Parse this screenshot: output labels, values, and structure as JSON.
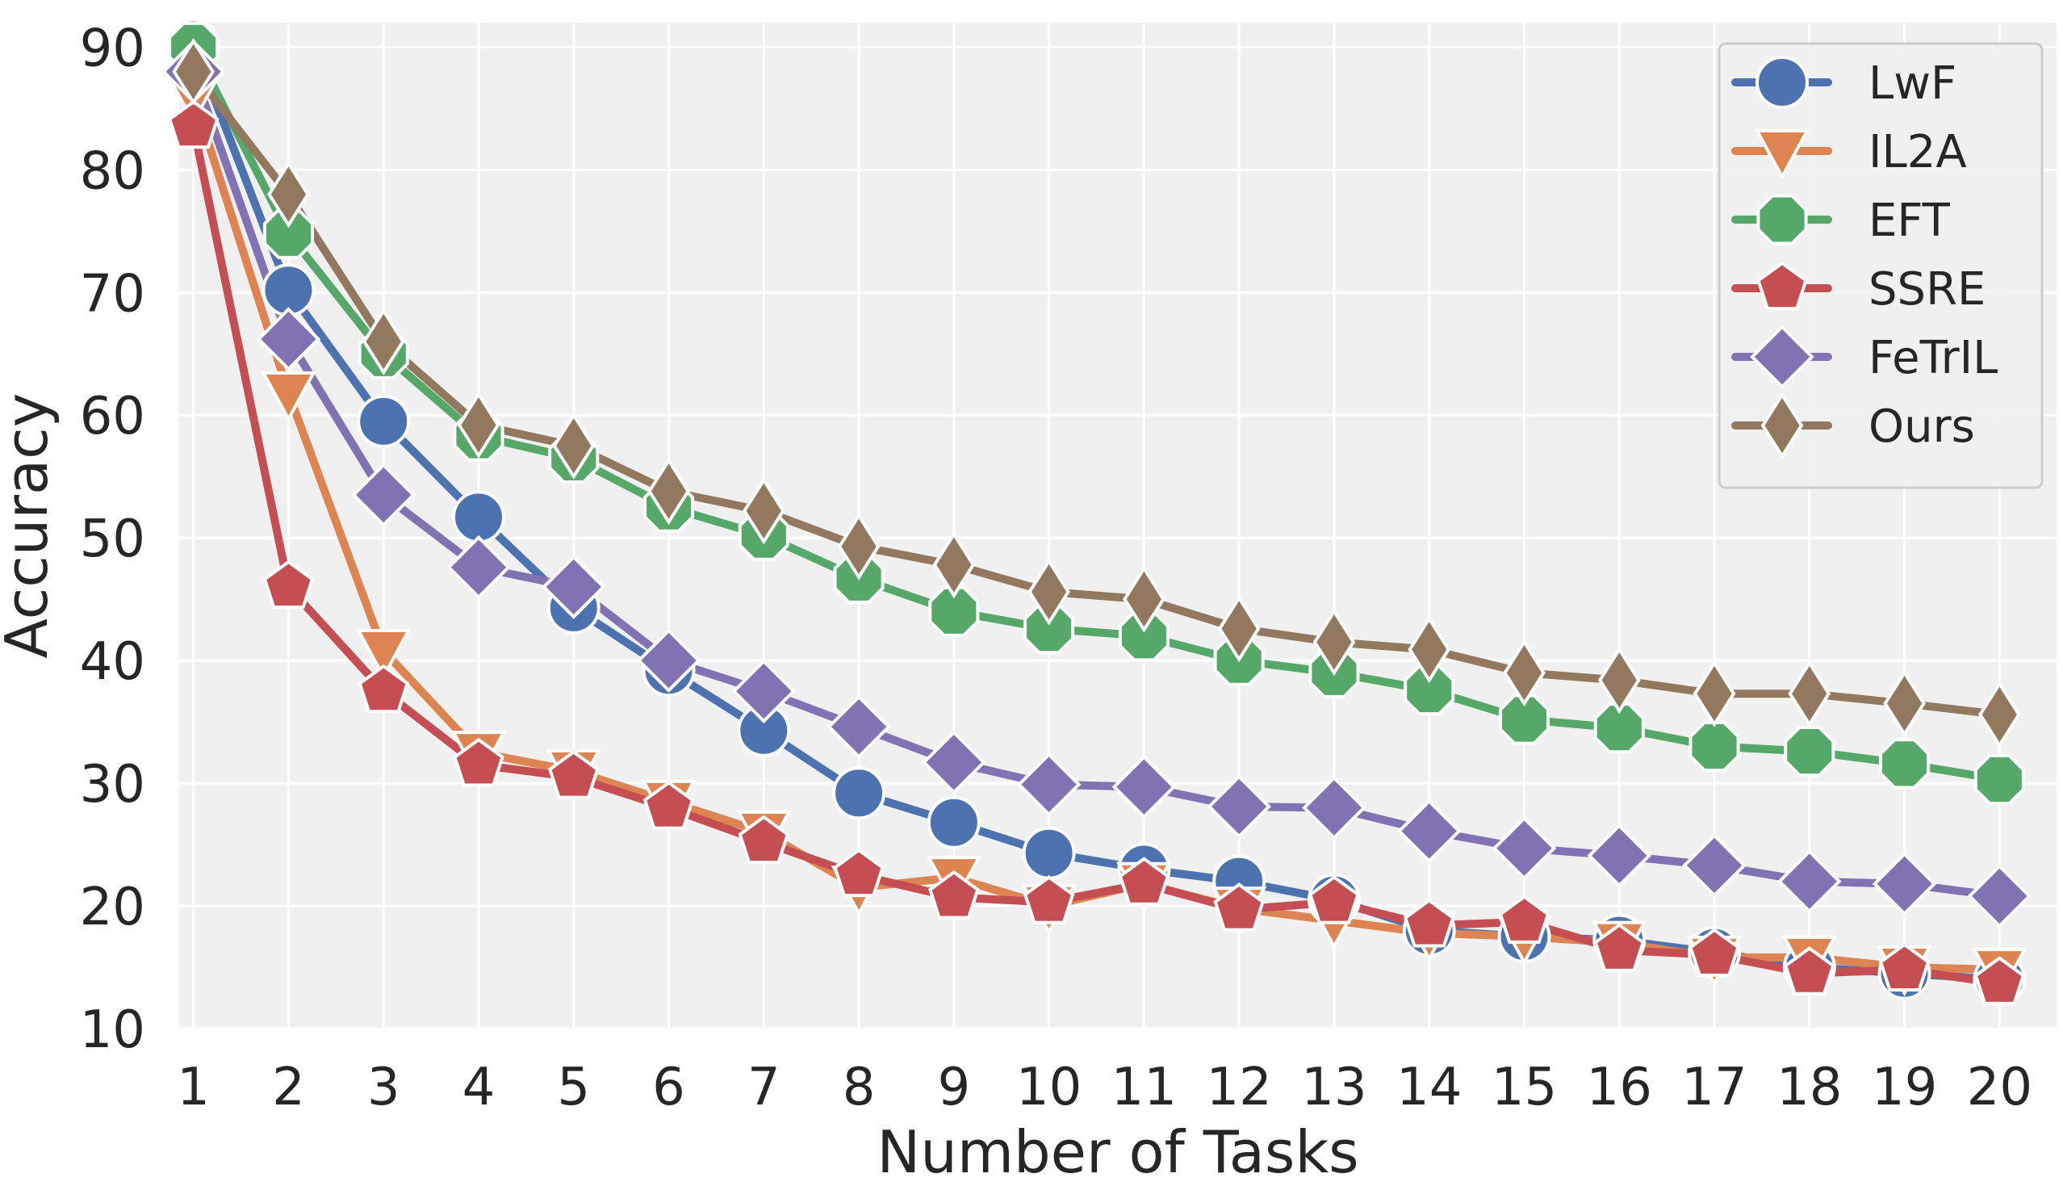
{
  "chart_data": {
    "type": "line",
    "title": "",
    "xlabel": "Number of Tasks",
    "ylabel": "Accuracy",
    "x": [
      1,
      2,
      3,
      4,
      5,
      6,
      7,
      8,
      9,
      10,
      11,
      12,
      13,
      14,
      15,
      16,
      17,
      18,
      19,
      20
    ],
    "xlim": [
      0.85,
      20.6
    ],
    "ylim": [
      10,
      92
    ],
    "yticks": [
      10,
      20,
      30,
      40,
      50,
      60,
      70,
      80,
      90
    ],
    "grid": true,
    "legend_position": "top-right",
    "series": [
      {
        "name": "LwF",
        "color": "#4C72B0",
        "marker": "circle",
        "values": [
          90.2,
          70.2,
          59.5,
          51.7,
          44.3,
          39.2,
          34.3,
          29.2,
          26.8,
          24.3,
          23.0,
          22.0,
          20.5,
          18.0,
          17.5,
          17.2,
          16.2,
          15.0,
          14.5,
          14.0
        ]
      },
      {
        "name": "IL2A",
        "color": "#DD8452",
        "marker": "triangle-down",
        "values": [
          86.0,
          61.8,
          40.8,
          32.5,
          31.0,
          28.5,
          26.0,
          21.5,
          22.3,
          20.0,
          21.8,
          19.8,
          18.8,
          17.8,
          17.5,
          17.0,
          15.8,
          15.8,
          15.0,
          14.8
        ]
      },
      {
        "name": "EFT",
        "color": "#55A868",
        "marker": "octagon",
        "values": [
          90.0,
          74.8,
          65.0,
          58.3,
          56.5,
          52.5,
          50.2,
          46.7,
          44.0,
          42.6,
          42.0,
          40.0,
          39.0,
          37.6,
          35.2,
          34.5,
          33.0,
          32.6,
          31.6,
          30.3
        ]
      },
      {
        "name": "SSRE",
        "color": "#C44E52",
        "marker": "pentagon",
        "values": [
          83.5,
          46.0,
          37.5,
          31.5,
          30.5,
          28.0,
          25.2,
          22.5,
          20.7,
          20.3,
          21.8,
          19.7,
          20.3,
          18.4,
          18.7,
          16.4,
          16.0,
          14.5,
          14.8,
          13.7
        ]
      },
      {
        "name": "FeTrIL",
        "color": "#8172B3",
        "marker": "diamond",
        "values": [
          88.0,
          66.2,
          53.5,
          47.6,
          46.0,
          40.0,
          37.5,
          34.6,
          31.7,
          29.9,
          29.7,
          28.1,
          28.0,
          26.1,
          24.7,
          24.1,
          23.3,
          22.0,
          21.8,
          20.8
        ]
      },
      {
        "name": "Ours",
        "color": "#937860",
        "marker": "thin-diamond",
        "values": [
          88.0,
          78.0,
          66.0,
          59.2,
          57.5,
          53.8,
          52.2,
          49.3,
          47.8,
          45.6,
          45.0,
          42.6,
          41.5,
          40.9,
          39.0,
          38.4,
          37.3,
          37.3,
          36.5,
          35.6
        ]
      }
    ]
  }
}
